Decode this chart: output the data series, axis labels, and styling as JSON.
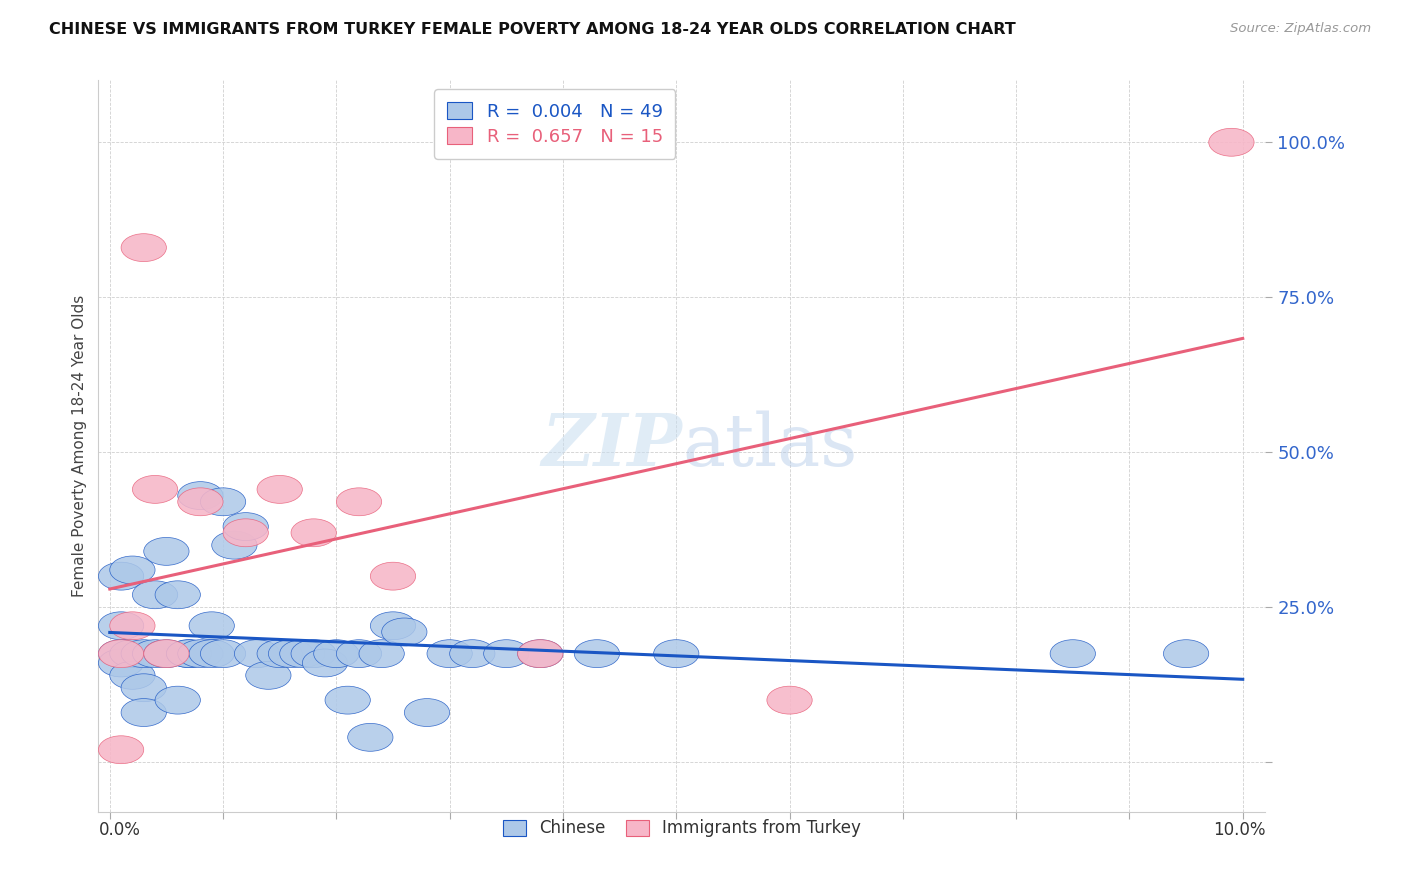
{
  "title": "CHINESE VS IMMIGRANTS FROM TURKEY FEMALE POVERTY AMONG 18-24 YEAR OLDS CORRELATION CHART",
  "source": "Source: ZipAtlas.com",
  "ylabel": "Female Poverty Among 18-24 Year Olds",
  "watermark": "ZIPatlas",
  "xlim": [
    -0.001,
    0.102
  ],
  "ylim": [
    -0.08,
    1.1
  ],
  "yticks": [
    0.0,
    0.25,
    0.5,
    0.75,
    1.0
  ],
  "ytick_labels": [
    "",
    "25.0%",
    "50.0%",
    "75.0%",
    "100.0%"
  ],
  "legend_r_chinese": "0.004",
  "legend_n_chinese": "49",
  "legend_r_turkey": "0.657",
  "legend_n_turkey": "15",
  "chinese_color": "#adc8e8",
  "turkey_color": "#f7b6c8",
  "trend_chinese_color": "#1a56c4",
  "trend_turkey_color": "#e8607a",
  "bg_color": "#ffffff",
  "grid_color": "#d0d0d0",
  "chinese_x": [
    0.001,
    0.001,
    0.001,
    0.001,
    0.002,
    0.002,
    0.002,
    0.003,
    0.003,
    0.003,
    0.004,
    0.004,
    0.005,
    0.005,
    0.006,
    0.006,
    0.007,
    0.007,
    0.008,
    0.008,
    0.009,
    0.009,
    0.01,
    0.01,
    0.011,
    0.012,
    0.013,
    0.014,
    0.015,
    0.016,
    0.017,
    0.018,
    0.019,
    0.02,
    0.021,
    0.022,
    0.023,
    0.024,
    0.025,
    0.026,
    0.028,
    0.03,
    0.032,
    0.035,
    0.038,
    0.043,
    0.05,
    0.085,
    0.095
  ],
  "chinese_y": [
    0.175,
    0.175,
    0.16,
    0.14,
    0.31,
    0.175,
    0.14,
    0.175,
    0.12,
    0.08,
    0.27,
    0.34,
    0.175,
    0.3,
    0.27,
    0.175,
    0.175,
    0.1,
    0.175,
    0.175,
    0.22,
    0.175,
    0.43,
    0.175,
    0.175,
    0.175,
    0.42,
    0.35,
    0.38,
    0.175,
    0.175,
    0.175,
    0.175,
    0.175,
    0.1,
    0.175,
    0.14,
    0.16,
    0.175,
    0.175,
    0.175,
    0.175,
    0.175,
    0.175,
    0.04,
    0.175,
    0.22,
    0.21,
    0.08
  ],
  "turkey_x": [
    0.001,
    0.001,
    0.002,
    0.003,
    0.004,
    0.005,
    0.008,
    0.012,
    0.015,
    0.018,
    0.022,
    0.025,
    0.038,
    0.06,
    0.099
  ],
  "turkey_y": [
    0.175,
    0.22,
    0.175,
    0.83,
    0.44,
    0.175,
    0.42,
    0.37,
    0.44,
    0.37,
    0.42,
    0.3,
    0.175,
    0.1,
    1.0
  ]
}
